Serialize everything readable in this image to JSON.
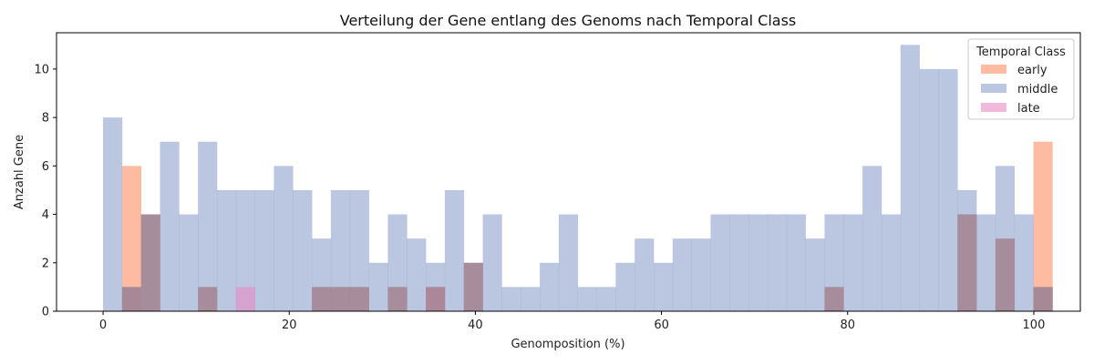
{
  "chart_data": {
    "type": "bar",
    "title": "Verteilung der Gene entlang des Genoms nach Temporal Class",
    "xlabel": "Genomposition (%)",
    "ylabel": "Anzahl Gene",
    "xlim": [
      -5,
      105
    ],
    "ylim": [
      0,
      11.5
    ],
    "x_ticks": [
      0,
      20,
      40,
      60,
      80,
      100
    ],
    "y_ticks": [
      0,
      2,
      4,
      6,
      8,
      10
    ],
    "bin_start": 0,
    "bin_width": 2.04,
    "legend": {
      "title": "Temporal Class",
      "placement": "top-right"
    },
    "grid": false,
    "series": [
      {
        "name": "early",
        "color": "#fc8d62",
        "values": [
          0,
          6,
          0,
          0,
          0,
          0,
          0,
          0,
          0,
          0,
          0,
          0,
          0,
          0,
          0,
          0,
          0,
          0,
          0,
          0,
          0,
          0,
          0,
          0,
          0,
          0,
          0,
          0,
          0,
          0,
          0,
          0,
          0,
          0,
          0,
          0,
          0,
          0,
          0,
          0,
          0,
          0,
          0,
          0,
          0,
          0,
          0,
          0,
          0,
          7
        ]
      },
      {
        "name": "middle",
        "color": "#8da0cb",
        "values": [
          8,
          1,
          4,
          7,
          4,
          7,
          5,
          5,
          5,
          6,
          5,
          3,
          5,
          5,
          2,
          4,
          3,
          2,
          5,
          2,
          4,
          1,
          1,
          2,
          4,
          1,
          1,
          2,
          3,
          2,
          3,
          3,
          4,
          4,
          4,
          4,
          4,
          3,
          4,
          4,
          6,
          4,
          11,
          10,
          10,
          5,
          4,
          6,
          4,
          1
        ]
      },
      {
        "name": "late",
        "color": "#e78ac3",
        "values": [
          0,
          0,
          0,
          0,
          0,
          0,
          0,
          1,
          0,
          0,
          0,
          0,
          0,
          0,
          0,
          0,
          0,
          1,
          0,
          0,
          0,
          0,
          0,
          0,
          0,
          0,
          0,
          0,
          0,
          0,
          0,
          0,
          0,
          0,
          0,
          0,
          0,
          0,
          0,
          0,
          0,
          0,
          0,
          0,
          0,
          0,
          0,
          0,
          0,
          0
        ]
      },
      {
        "name": "",
        "color": "#a3838f",
        "values": [
          0,
          1,
          4,
          0,
          0,
          1,
          0,
          0,
          0,
          0,
          0,
          1,
          1,
          1,
          0,
          1,
          0,
          1,
          0,
          2,
          0,
          0,
          0,
          0,
          0,
          0,
          0,
          0,
          0,
          0,
          0,
          0,
          0,
          0,
          0,
          0,
          0,
          0,
          1,
          0,
          0,
          0,
          0,
          0,
          0,
          4,
          0,
          3,
          0,
          1
        ]
      }
    ]
  }
}
